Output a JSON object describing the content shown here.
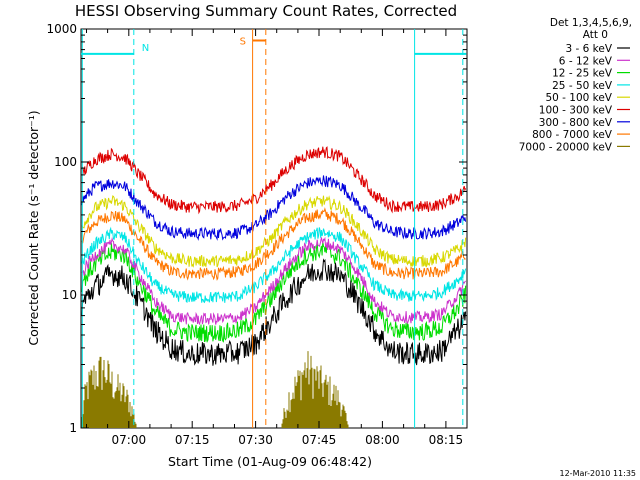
{
  "chart_data": {
    "type": "line",
    "title": "HESSI Observing Summary Count Rates, Corrected",
    "xlabel": "Start Time (01-Aug-09 06:48:42)",
    "ylabel": "Corrected Count Rate (s⁻¹ detector⁻¹)",
    "yscale": "log",
    "ylim": [
      1,
      1000
    ],
    "xlim_minutes": [
      48.7,
      140
    ],
    "x_unit": "minutes after 06:00 UT",
    "x_ticks": [
      {
        "value": 60,
        "label": "07:00"
      },
      {
        "value": 75,
        "label": "07:15"
      },
      {
        "value": 90,
        "label": "07:30"
      },
      {
        "value": 105,
        "label": "07:45"
      },
      {
        "value": 120,
        "label": "08:00"
      },
      {
        "value": 135,
        "label": "08:15"
      }
    ],
    "y_ticks": [
      {
        "value": 1,
        "label": "1"
      },
      {
        "value": 10,
        "label": "10"
      },
      {
        "value": 100,
        "label": "100"
      },
      {
        "value": 1000,
        "label": "1000"
      }
    ],
    "legend_header": [
      "Det 1,3,4,5,6,9,",
      "Att 0"
    ],
    "legend_position": "right",
    "series": [
      {
        "name": "3 - 6 keV",
        "color": "#000000",
        "x": [
          48.7,
          52,
          56,
          59,
          62,
          66,
          70,
          74,
          78,
          82,
          86,
          90,
          94,
          98,
          102,
          106,
          110,
          114,
          118,
          122,
          126,
          130,
          134,
          138,
          140
        ],
        "values": [
          8.2,
          11.5,
          14.5,
          13.5,
          9.5,
          5.5,
          4.0,
          3.6,
          3.6,
          3.6,
          3.7,
          4.3,
          6.5,
          10,
          14,
          16,
          14,
          9,
          5.5,
          3.8,
          3.6,
          3.6,
          3.8,
          5.5,
          7
        ]
      },
      {
        "name": "6 - 12 keV",
        "color": "#cc33cc",
        "x": [
          48.7,
          52,
          56,
          59,
          62,
          66,
          70,
          74,
          78,
          82,
          86,
          90,
          94,
          98,
          102,
          106,
          110,
          114,
          118,
          122,
          126,
          130,
          134,
          138,
          140
        ],
        "values": [
          14,
          20,
          24,
          22,
          15,
          9,
          7,
          6.6,
          6.6,
          6.6,
          6.8,
          8,
          11.5,
          17,
          23,
          25,
          22,
          15,
          9,
          7,
          6.8,
          6.8,
          7.2,
          10,
          13
        ]
      },
      {
        "name": "12 - 25 keV",
        "color": "#00dd00",
        "x": [
          48.7,
          52,
          56,
          59,
          62,
          66,
          70,
          74,
          78,
          82,
          86,
          90,
          94,
          98,
          102,
          106,
          110,
          114,
          118,
          122,
          126,
          130,
          134,
          138,
          140
        ],
        "values": [
          12,
          17,
          21,
          20,
          13,
          7.5,
          5.6,
          5.2,
          5.2,
          5.2,
          5.4,
          6.5,
          9.5,
          15,
          20,
          22,
          19,
          12,
          7.5,
          5.6,
          5.3,
          5.3,
          5.7,
          8,
          10.5
        ]
      },
      {
        "name": "25 - 50 keV",
        "color": "#00e5e5",
        "x": [
          48.7,
          52,
          56,
          59,
          62,
          66,
          70,
          74,
          78,
          82,
          86,
          90,
          94,
          98,
          102,
          106,
          110,
          114,
          118,
          122,
          126,
          130,
          134,
          138,
          140
        ],
        "values": [
          17,
          24,
          29,
          27,
          18,
          12,
          10,
          9.6,
          9.6,
          9.6,
          9.8,
          11.5,
          15,
          21,
          27,
          30,
          27,
          18,
          12,
          10,
          9.8,
          9.8,
          10.5,
          13,
          16
        ]
      },
      {
        "name": "50 - 100 keV",
        "color": "#d8d800",
        "x": [
          48.7,
          52,
          56,
          59,
          62,
          66,
          70,
          74,
          78,
          82,
          86,
          90,
          94,
          98,
          102,
          106,
          110,
          114,
          118,
          122,
          126,
          130,
          134,
          138,
          140
        ],
        "values": [
          32,
          45,
          51,
          47,
          34,
          23,
          19,
          18,
          18,
          18,
          18.5,
          21,
          27,
          38,
          48,
          51,
          46,
          33,
          22,
          18.5,
          18,
          18,
          19,
          22,
          26
        ]
      },
      {
        "name": "100 - 300 keV",
        "color": "#dd0000",
        "x": [
          48.7,
          52,
          56,
          59,
          62,
          66,
          70,
          74,
          78,
          82,
          86,
          90,
          94,
          98,
          102,
          106,
          110,
          114,
          118,
          122,
          126,
          130,
          134,
          138,
          140
        ],
        "values": [
          80,
          104,
          115,
          108,
          83,
          58,
          48,
          46,
          46,
          46,
          47,
          53,
          68,
          92,
          113,
          120,
          110,
          80,
          56,
          47,
          46,
          46,
          48,
          56,
          64
        ]
      },
      {
        "name": "300 - 800 keV",
        "color": "#0000dd",
        "x": [
          48.7,
          52,
          56,
          59,
          62,
          66,
          70,
          74,
          78,
          82,
          86,
          90,
          94,
          98,
          102,
          106,
          110,
          114,
          118,
          122,
          126,
          130,
          134,
          138,
          140
        ],
        "values": [
          50,
          65,
          70,
          66,
          50,
          36,
          30,
          29,
          29,
          29,
          29.5,
          33,
          42,
          57,
          69,
          73,
          67,
          49,
          35,
          30,
          29,
          29,
          30,
          35,
          40
        ]
      },
      {
        "name": "800 - 7000 keV",
        "color": "#ff7700",
        "x": [
          48.7,
          52,
          56,
          59,
          62,
          66,
          70,
          74,
          78,
          82,
          86,
          90,
          94,
          98,
          102,
          106,
          110,
          114,
          118,
          122,
          126,
          130,
          134,
          138,
          140
        ],
        "values": [
          26,
          35,
          40,
          37,
          27,
          18,
          15,
          14.5,
          14.5,
          14.5,
          15,
          17,
          22,
          30,
          38,
          41,
          37,
          26,
          17,
          14.7,
          14.5,
          14.5,
          15,
          18,
          21
        ]
      },
      {
        "name": "7000 - 20000 keV",
        "color": "#8a7a00",
        "x": [
          48.7,
          50,
          52,
          54,
          56,
          58,
          60,
          62,
          70,
          90,
          96,
          98,
          100,
          102,
          104,
          106,
          108,
          110,
          112,
          140
        ],
        "values": [
          1,
          2.3,
          3,
          3.4,
          2.6,
          2.2,
          1.8,
          1,
          1,
          1,
          1,
          2,
          2.6,
          3.5,
          3,
          2.5,
          2.2,
          1.8,
          1,
          1
        ]
      }
    ],
    "vertical_markers": [
      {
        "x": 49.0,
        "color": "#00e5e5",
        "style": "solid"
      },
      {
        "x": 61.2,
        "color": "#00e5e5",
        "style": "dashed"
      },
      {
        "x": 89.3,
        "color": "#ff7700",
        "style": "solid"
      },
      {
        "x": 92.4,
        "color": "#ff7700",
        "style": "dashed"
      },
      {
        "x": 127.6,
        "color": "#00e5e5",
        "style": "solid"
      },
      {
        "x": 139.0,
        "color": "#00e5e5",
        "style": "dashed"
      }
    ],
    "horizontal_markers": [
      {
        "x1": 48.7,
        "x2": 61.2,
        "y": 650,
        "color": "#00e5e5",
        "label": "N"
      },
      {
        "x1": 127.6,
        "x2": 139.8,
        "y": 650,
        "color": "#00e5e5",
        "label": ""
      },
      {
        "x1": 89.3,
        "x2": 92.4,
        "y": 820,
        "color": "#ff7700",
        "label": "S"
      }
    ]
  },
  "timestamp": "12-Mar-2010 11:35"
}
